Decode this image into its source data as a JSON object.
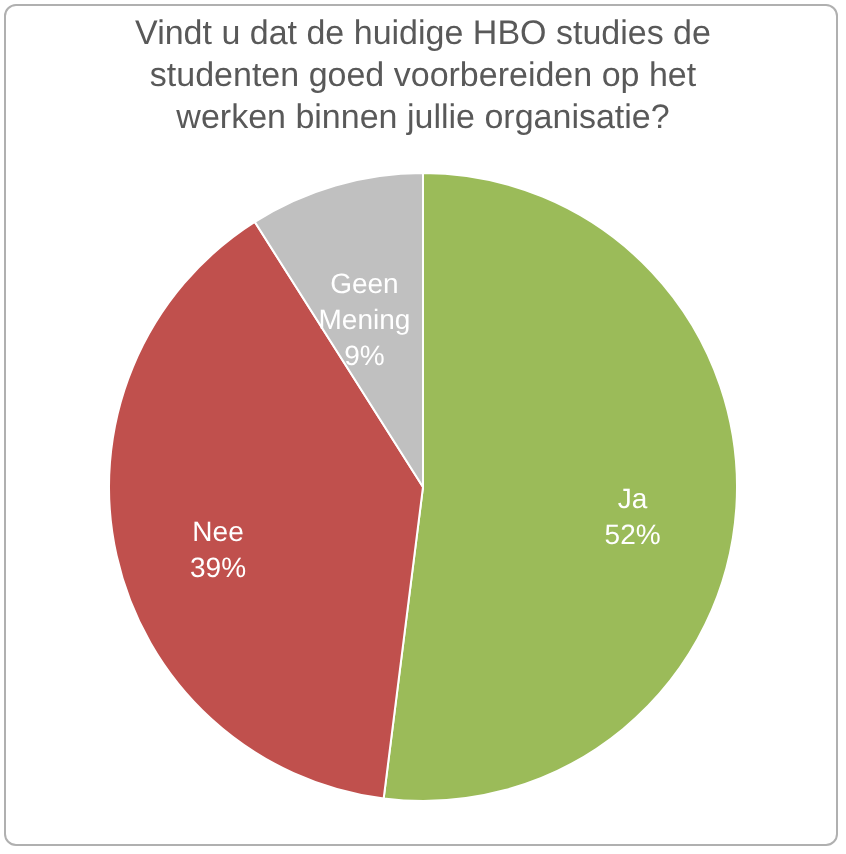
{
  "chart_data": {
    "type": "pie",
    "title": "Vindt u dat de huidige HBO studies de studenten goed voorbereiden op het werken binnen jullie organisatie?",
    "categories": [
      "Ja",
      "Nee",
      "Geen Mening"
    ],
    "values": [
      52,
      39,
      9
    ],
    "colors": [
      "#9bbb59",
      "#c0504d",
      "#c0c0c0"
    ],
    "value_labels": [
      "52%",
      "39%",
      "9%"
    ],
    "legend": false
  }
}
